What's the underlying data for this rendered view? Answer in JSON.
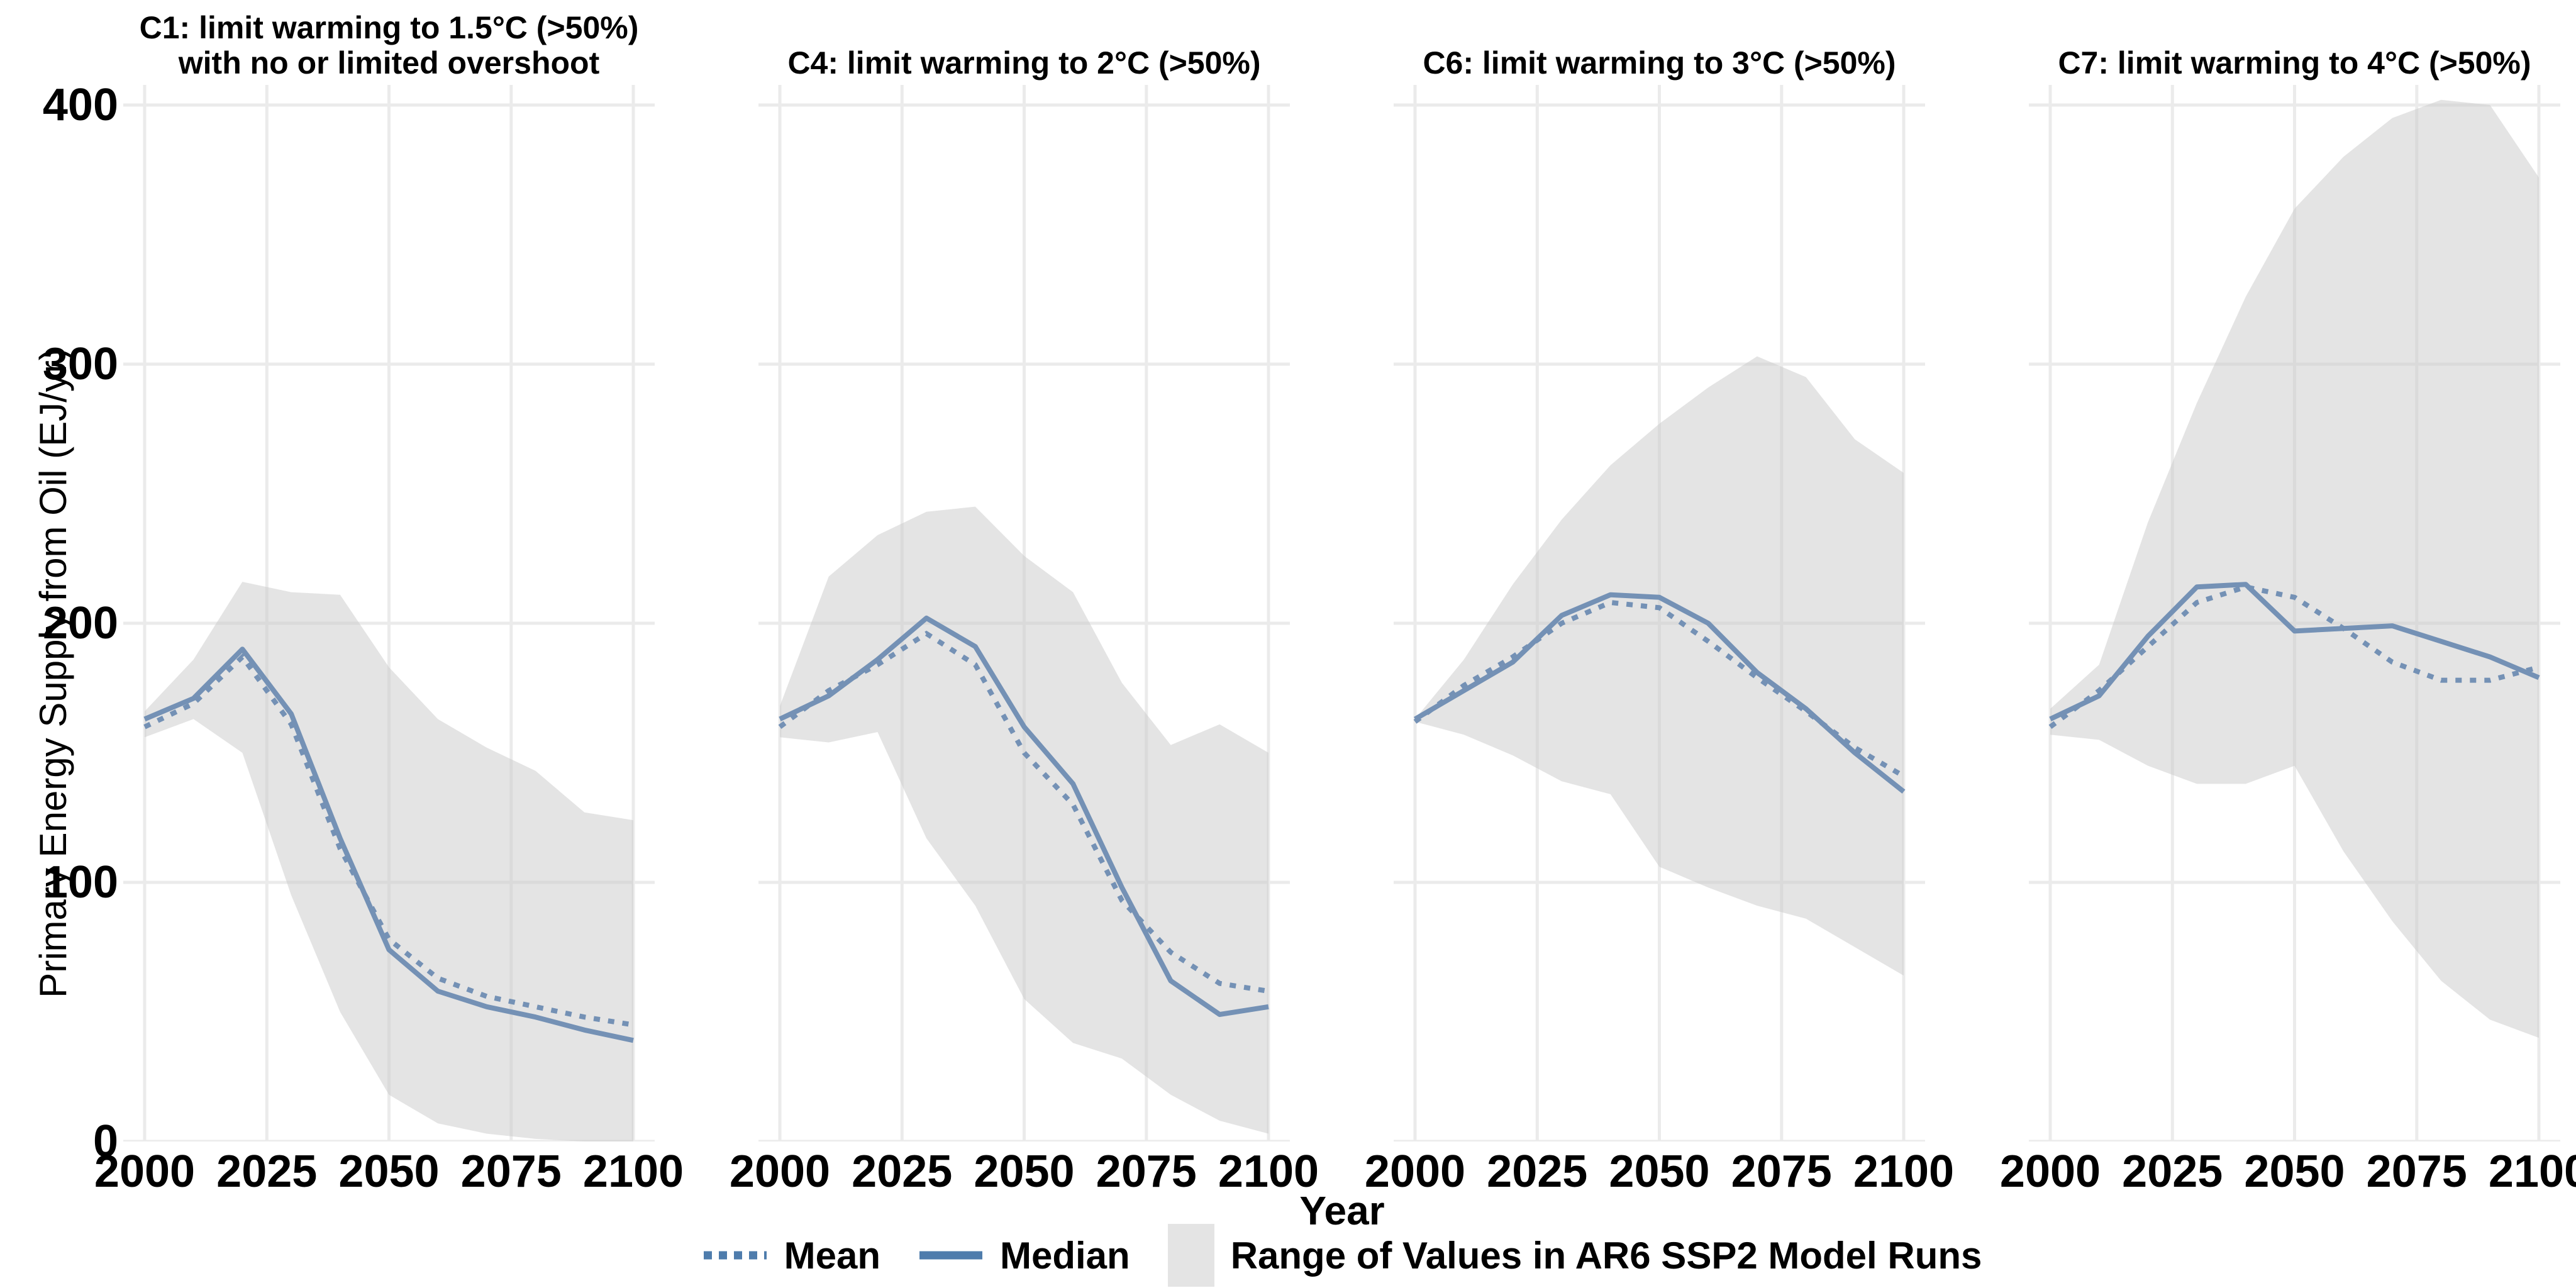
{
  "figure": {
    "y_axis": {
      "title": "Primary Energy Supply from Oil (EJ/yr)",
      "ticks": [
        0,
        100,
        200,
        300,
        400
      ],
      "limits": [
        0,
        400
      ]
    },
    "x_axis": {
      "title": "Year",
      "ticks": [
        2000,
        2025,
        2050,
        2075,
        2100
      ],
      "limits": [
        2000,
        2100
      ]
    },
    "legend": {
      "mean_label": "Mean",
      "median_label": "Median",
      "range_label": "Range of Values in AR6 SSP2 Model Runs"
    },
    "colors": {
      "line": "#7491b5",
      "legend_key_line": "#4e7cac",
      "band_solid": "#e4e4e4",
      "band_fill_rgba": "rgba(201,201,201,0.5)",
      "grid": "#ebebeb",
      "text": "#000000",
      "background": "#ffffff"
    }
  },
  "chart_data": [
    {
      "type": "line",
      "title": "C1: limit warming to 1.5°C (>50%)\nwith no or limited overshoot",
      "xlabel": "Year",
      "ylabel": "Primary Energy Supply from Oil (EJ/yr)",
      "ylim": [
        0,
        400
      ],
      "grid": true,
      "x": [
        2000,
        2010,
        2020,
        2030,
        2040,
        2050,
        2060,
        2070,
        2080,
        2090,
        2100
      ],
      "series": [
        {
          "name": "Mean",
          "style": "dotted",
          "values": [
            160,
            169,
            187,
            161,
            113,
            78,
            63,
            56,
            52,
            48,
            45
          ]
        },
        {
          "name": "Median",
          "style": "solid",
          "values": [
            163,
            171,
            190,
            165,
            117,
            74,
            58,
            52,
            48,
            43,
            39
          ]
        },
        {
          "name": "Range min",
          "style": "band-lower",
          "values": [
            156,
            163,
            150,
            95,
            50,
            18,
            7,
            3,
            1,
            0,
            0
          ]
        },
        {
          "name": "Range max",
          "style": "band-upper",
          "values": [
            166,
            186,
            216,
            212,
            211,
            183,
            163,
            152,
            143,
            127,
            124
          ]
        }
      ]
    },
    {
      "type": "line",
      "title": "C4: limit warming to 2°C (>50%)",
      "xlabel": "Year",
      "ylabel": "Primary Energy Supply from Oil (EJ/yr)",
      "ylim": [
        0,
        400
      ],
      "grid": true,
      "x": [
        2000,
        2010,
        2020,
        2030,
        2040,
        2050,
        2060,
        2070,
        2080,
        2090,
        2100
      ],
      "series": [
        {
          "name": "Mean",
          "style": "dotted",
          "values": [
            160,
            174,
            184,
            196,
            184,
            150,
            130,
            93,
            73,
            61,
            58
          ]
        },
        {
          "name": "Median",
          "style": "solid",
          "values": [
            163,
            172,
            186,
            202,
            191,
            160,
            138,
            98,
            62,
            49,
            52
          ]
        },
        {
          "name": "Range min",
          "style": "band-lower",
          "values": [
            156,
            154,
            158,
            117,
            91,
            55,
            38,
            32,
            18,
            8,
            3
          ]
        },
        {
          "name": "Range max",
          "style": "band-upper",
          "values": [
            168,
            218,
            234,
            243,
            245,
            226,
            212,
            177,
            153,
            161,
            150
          ]
        }
      ]
    },
    {
      "type": "line",
      "title": "C6: limit warming to 3°C (>50%)",
      "xlabel": "Year",
      "ylabel": "Primary Energy Supply from Oil (EJ/yr)",
      "ylim": [
        0,
        400
      ],
      "grid": true,
      "x": [
        2000,
        2010,
        2020,
        2030,
        2040,
        2050,
        2060,
        2070,
        2080,
        2090,
        2100
      ],
      "series": [
        {
          "name": "Mean",
          "style": "dotted",
          "values": [
            162,
            176,
            187,
            200,
            208,
            206,
            193,
            179,
            166,
            152,
            141
          ]
        },
        {
          "name": "Median",
          "style": "solid",
          "values": [
            163,
            174,
            185,
            203,
            211,
            210,
            200,
            181,
            167,
            150,
            135
          ]
        },
        {
          "name": "Range min",
          "style": "band-lower",
          "values": [
            162,
            157,
            149,
            139,
            134,
            106,
            98,
            91,
            86,
            75,
            64
          ]
        },
        {
          "name": "Range max",
          "style": "band-upper",
          "values": [
            163,
            186,
            215,
            240,
            261,
            277,
            291,
            303,
            295,
            271,
            258
          ]
        }
      ]
    },
    {
      "type": "line",
      "title": "C7: limit warming to 4°C (>50%)",
      "xlabel": "Year",
      "ylabel": "Primary Energy Supply from Oil (EJ/yr)",
      "ylim": [
        0,
        400
      ],
      "grid": true,
      "x": [
        2000,
        2010,
        2020,
        2030,
        2040,
        2050,
        2060,
        2070,
        2080,
        2090,
        2100
      ],
      "series": [
        {
          "name": "Mean",
          "style": "dotted",
          "values": [
            160,
            174,
            191,
            208,
            214,
            210,
            198,
            185,
            178,
            178,
            183
          ]
        },
        {
          "name": "Median",
          "style": "solid",
          "values": [
            163,
            172,
            195,
            214,
            215,
            197,
            198,
            199,
            193,
            187,
            179
          ]
        },
        {
          "name": "Range min",
          "style": "band-lower",
          "values": [
            157,
            155,
            145,
            138,
            138,
            145,
            112,
            85,
            62,
            47,
            40
          ]
        },
        {
          "name": "Range max",
          "style": "band-upper",
          "values": [
            167,
            184,
            239,
            285,
            326,
            360,
            380,
            395,
            402,
            400,
            372
          ]
        }
      ]
    }
  ]
}
